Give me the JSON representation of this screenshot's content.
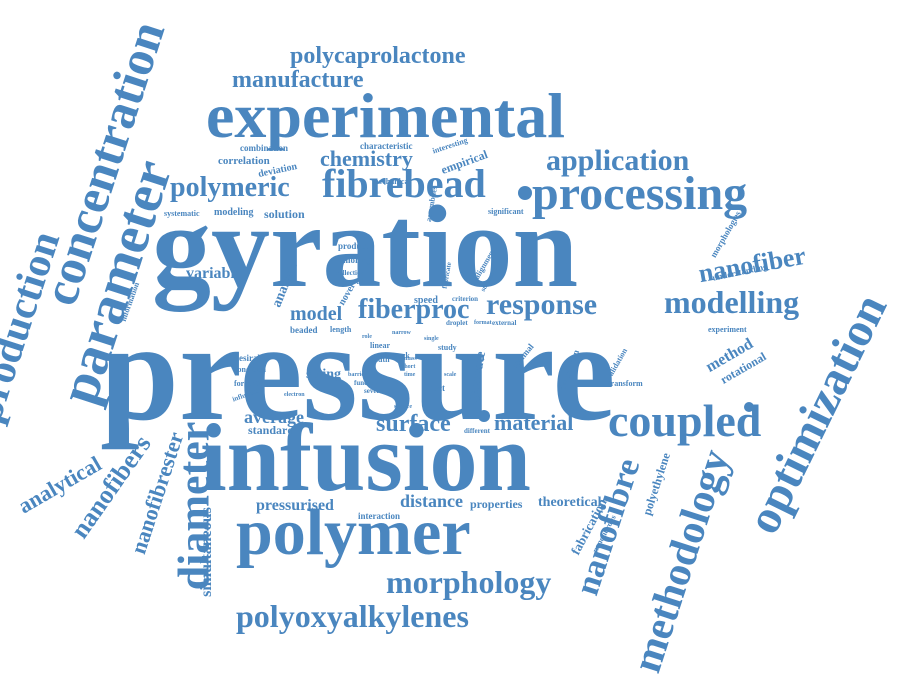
{
  "colors": {
    "word": "#4a86bf",
    "background": "#ffffff"
  },
  "words": {
    "gyration": "gyration",
    "pressure": "pressure",
    "infusion": "infusion",
    "experimental": "experimental",
    "polymer": "polymer",
    "processing": "processing",
    "parameter": "parameter",
    "concentration": "concentration",
    "production": "production",
    "optimization": "optimization",
    "coupled": "coupled",
    "diameter": "diameter",
    "methodology": "methodology",
    "nanofibre": "nanofibre",
    "morphology": "morphology",
    "polyoxyalkylenes": "polyoxyalkylenes",
    "polycaprolactone": "polycaprolactone",
    "manufacture": "manufacture",
    "application": "application",
    "fibrebead": "fibrebead",
    "polymeric": "polymeric",
    "chemistry": "chemistry",
    "modelling": "modelling",
    "response": "response",
    "fiberproc": "fiberproc",
    "model": "model",
    "nanofiber": "nanofiber",
    "nanofibers": "nanofibers",
    "nanofibrester": "nanofibrester",
    "analytical": "analytical",
    "surface": "surface",
    "material": "material",
    "average": "average",
    "standard": "standard",
    "pressurised": "pressurised",
    "distance": "distance",
    "properties": "properties",
    "theoretical": "theoretical",
    "method": "method",
    "rotational": "rotational",
    "variable": "variable",
    "analysis": "analysis",
    "solution": "solution",
    "modeling": "modeling",
    "systematic": "systematic",
    "correlation": "correlation",
    "combination": "combination",
    "deviation": "deviation",
    "characteristic": "characteristic",
    "interesting": "interesting",
    "empirical": "empirical",
    "mechanical": "mechanical",
    "assemblies": "assemblies",
    "significant": "significant",
    "morphologies": "morphologies",
    "understanding": "understanding",
    "experiment": "experiment",
    "transform": "transform",
    "validation": "validation",
    "description": "description",
    "optimal": "optimal",
    "generate": "generate",
    "spun": "spun",
    "study": "study",
    "speed": "speed",
    "criterion": "criterion",
    "external": "external",
    "format": "format",
    "droplet": "droplet",
    "narrow": "narrow",
    "fabricate": "fabricate",
    "alignment": "alignment",
    "successes": "successes",
    "product": "product",
    "tailoring": "tailoring",
    "collection": "collection",
    "result": "result",
    "novel": "novel",
    "beaded": "beaded",
    "length": "length",
    "linear": "linear",
    "width": "width",
    "work": "work",
    "desirable": "desirable",
    "condition": "condition",
    "formation": "formation",
    "string": "string",
    "function": "function",
    "several": "several",
    "effect": "effect",
    "influence": "influence",
    "electron": "electron",
    "science": "science",
    "different": "different",
    "interaction": "interaction",
    "simultaneous": "simultaneous",
    "fabrication": "fabrication",
    "nanofibrous": "nanofibrous",
    "polyethylene": "polyethylene",
    "information": "information",
    "single": "single",
    "time": "time",
    "short": "short",
    "mass": "mass",
    "barrier": "barrier",
    "scale": "scale",
    "role": "role",
    "find": "find"
  }
}
